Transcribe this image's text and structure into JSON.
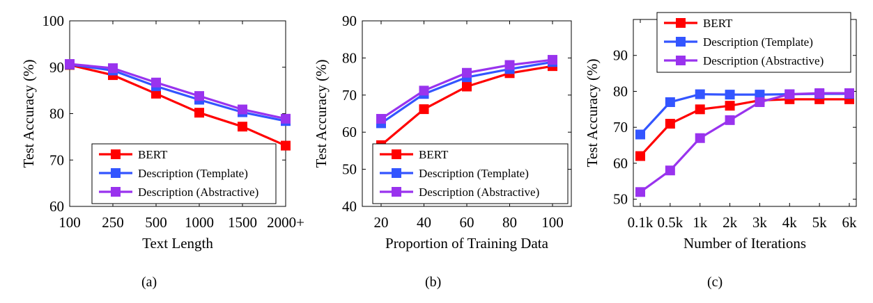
{
  "chart_data": [
    {
      "type": "line",
      "caption": "(a)",
      "xlabel": "Text Length",
      "ylabel": "Test Accuracy (%)",
      "categories": [
        "100",
        "250",
        "500",
        "1000",
        "1500",
        "2000+"
      ],
      "ylim": [
        60,
        100
      ],
      "yticks": [
        60,
        70,
        80,
        90,
        100
      ],
      "legend_position": "bottom-right",
      "grid": false,
      "series": [
        {
          "name": "BERT",
          "color": "#ff0000",
          "values": [
            90.5,
            88.3,
            84.3,
            80.2,
            77.2,
            73.1
          ]
        },
        {
          "name": "Description (Template)",
          "color": "#3355ff",
          "values": [
            90.6,
            89.3,
            85.9,
            83.0,
            80.3,
            78.4
          ]
        },
        {
          "name": "Description (Abstractive)",
          "color": "#9933ee",
          "values": [
            90.7,
            89.8,
            86.7,
            83.8,
            80.9,
            78.9
          ]
        }
      ]
    },
    {
      "type": "line",
      "caption": "(b)",
      "xlabel": "Proportion of Training Data",
      "ylabel": "Test Accuracy (%)",
      "categories": [
        "20",
        "40",
        "60",
        "80",
        "100"
      ],
      "ylim": [
        40,
        90
      ],
      "yticks": [
        40,
        50,
        60,
        70,
        80,
        90
      ],
      "legend_position": "bottom-right",
      "grid": false,
      "series": [
        {
          "name": "BERT",
          "color": "#ff0000",
          "values": [
            56.5,
            66.2,
            72.3,
            75.9,
            77.8
          ]
        },
        {
          "name": "Description (Template)",
          "color": "#3355ff",
          "values": [
            62.4,
            70.3,
            74.8,
            77.0,
            78.9
          ]
        },
        {
          "name": "Description (Abstractive)",
          "color": "#9933ee",
          "values": [
            63.6,
            71.2,
            76.0,
            78.1,
            79.5
          ]
        }
      ]
    },
    {
      "type": "line",
      "caption": "(c)",
      "xlabel": "Number of Iterations",
      "ylabel": "Test Accuracy (%)",
      "categories": [
        "0.1k",
        "0.5k",
        "1k",
        "2k",
        "3k",
        "4k",
        "5k",
        "6k"
      ],
      "ylim": [
        48,
        100
      ],
      "yticks": [
        50,
        60,
        70,
        80,
        90
      ],
      "legend_position": "top-left",
      "grid": false,
      "series": [
        {
          "name": "BERT",
          "color": "#ff0000",
          "values": [
            62.0,
            71.0,
            75.0,
            76.0,
            77.5,
            77.8,
            77.8,
            77.8
          ]
        },
        {
          "name": "Description (Template)",
          "color": "#3355ff",
          "values": [
            68.0,
            77.0,
            79.2,
            79.1,
            79.1,
            79.2,
            79.3,
            79.3
          ]
        },
        {
          "name": "Description (Abstractive)",
          "color": "#9933ee",
          "values": [
            52.0,
            58.0,
            67.0,
            72.0,
            77.0,
            79.2,
            79.5,
            79.5
          ]
        }
      ]
    }
  ]
}
